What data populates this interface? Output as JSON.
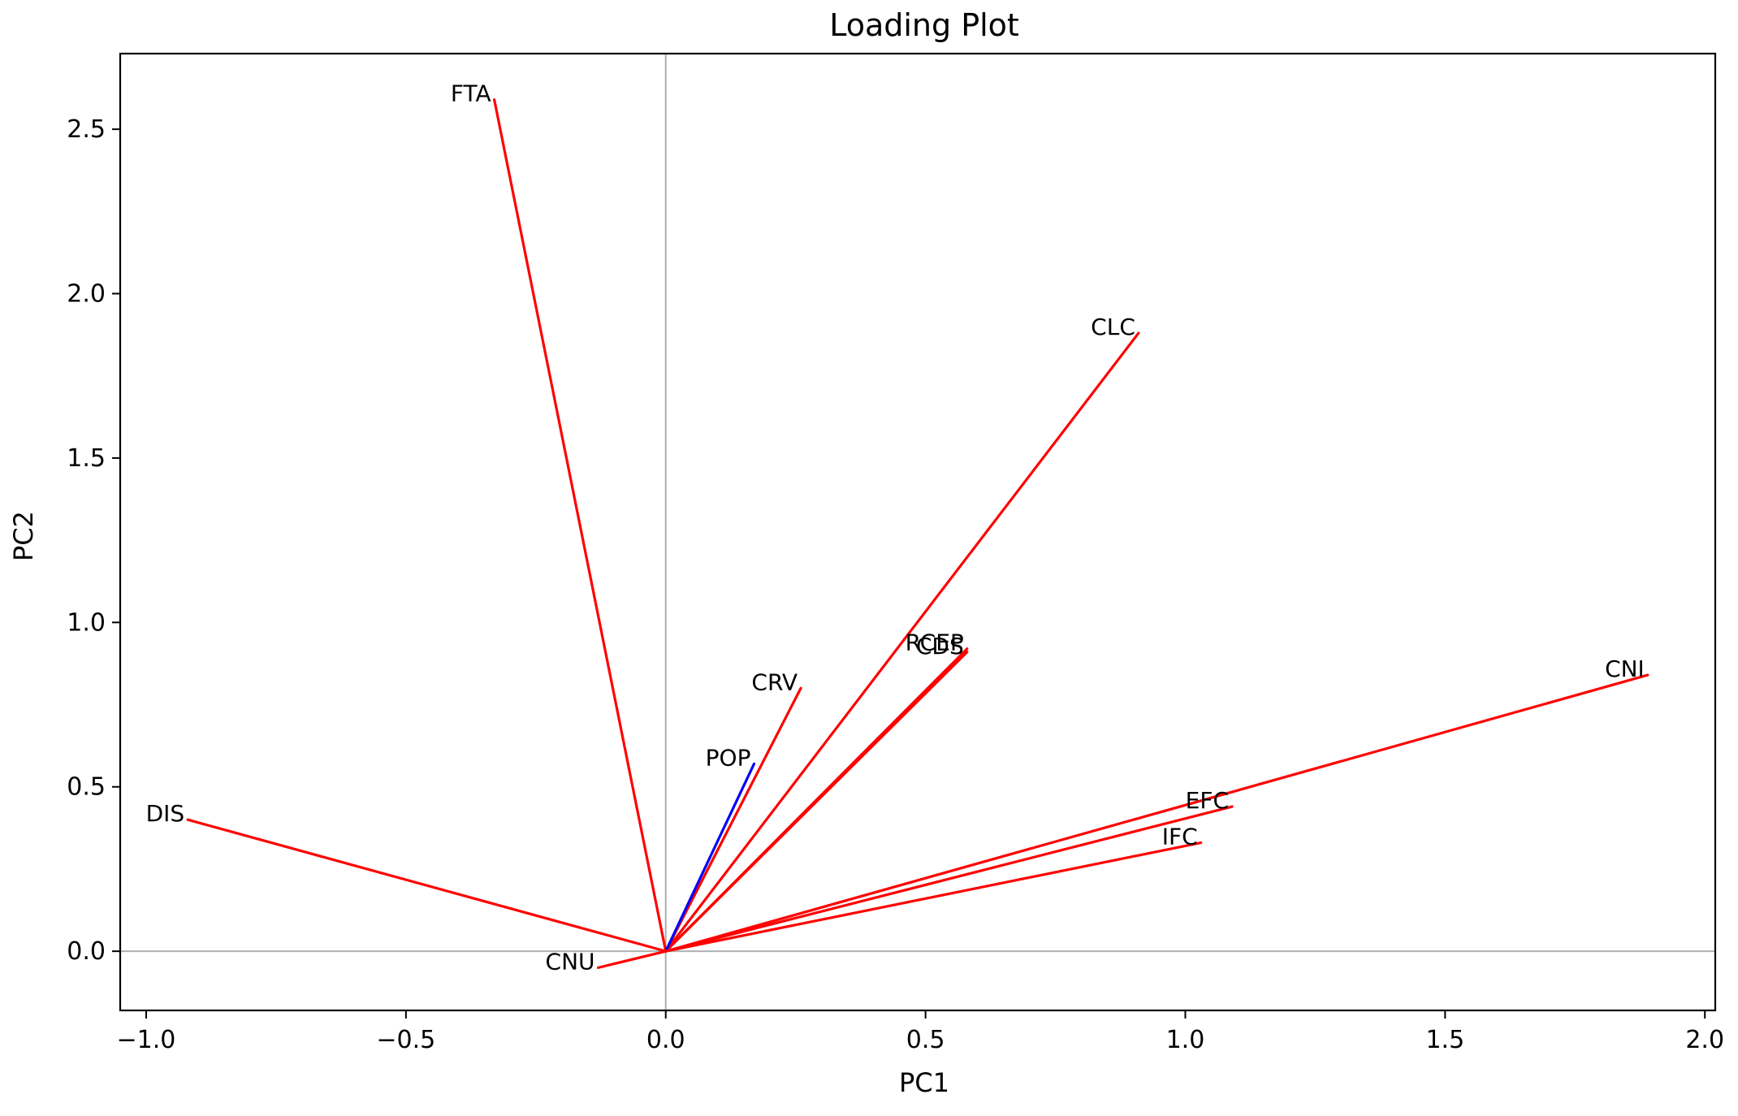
{
  "chart_data": {
    "type": "line",
    "title": "Loading Plot",
    "xlabel": "PC1",
    "ylabel": "PC2",
    "xlim": [
      -1.05,
      2.02
    ],
    "ylim": [
      -0.18,
      2.73
    ],
    "xticks": [
      -1.0,
      -0.5,
      0.0,
      0.5,
      1.0,
      1.5,
      2.0
    ],
    "xtick_labels": [
      "−1.0",
      "−0.5",
      "0.0",
      "0.5",
      "1.0",
      "1.5",
      "2.0"
    ],
    "yticks": [
      0.0,
      0.5,
      1.0,
      1.5,
      2.0,
      2.5
    ],
    "ytick_labels": [
      "0.0",
      "0.5",
      "1.0",
      "1.5",
      "2.0",
      "2.5"
    ],
    "reference_lines": {
      "x": 0,
      "y": 0,
      "color": "#b0b0b0"
    },
    "grid": false,
    "series": [
      {
        "name": "FTA",
        "x": [
          0,
          -0.33
        ],
        "y": [
          0,
          2.59
        ],
        "color": "#ff0000"
      },
      {
        "name": "CLC",
        "x": [
          0,
          0.91
        ],
        "y": [
          0,
          1.88
        ],
        "color": "#ff0000"
      },
      {
        "name": "RCEP",
        "x": [
          0,
          0.58
        ],
        "y": [
          0,
          0.92
        ],
        "color": "#ff0000"
      },
      {
        "name": "CDS",
        "x": [
          0,
          0.58
        ],
        "y": [
          0,
          0.91
        ],
        "color": "#ff0000"
      },
      {
        "name": "CRV",
        "x": [
          0,
          0.26
        ],
        "y": [
          0,
          0.8
        ],
        "color": "#ff0000"
      },
      {
        "name": "POP",
        "x": [
          0,
          0.17
        ],
        "y": [
          0,
          0.57
        ],
        "color": "#0000ff"
      },
      {
        "name": "CNI",
        "x": [
          0,
          1.89
        ],
        "y": [
          0,
          0.84
        ],
        "color": "#ff0000"
      },
      {
        "name": "EFC",
        "x": [
          0,
          1.09
        ],
        "y": [
          0,
          0.44
        ],
        "color": "#ff0000"
      },
      {
        "name": "IFC",
        "x": [
          0,
          1.03
        ],
        "y": [
          0,
          0.33
        ],
        "color": "#ff0000"
      },
      {
        "name": "DIS",
        "x": [
          0,
          -0.92
        ],
        "y": [
          0,
          0.4
        ],
        "color": "#ff0000"
      },
      {
        "name": "CNU",
        "x": [
          0,
          -0.13
        ],
        "y": [
          0,
          -0.05
        ],
        "color": "#ff0000"
      }
    ]
  }
}
